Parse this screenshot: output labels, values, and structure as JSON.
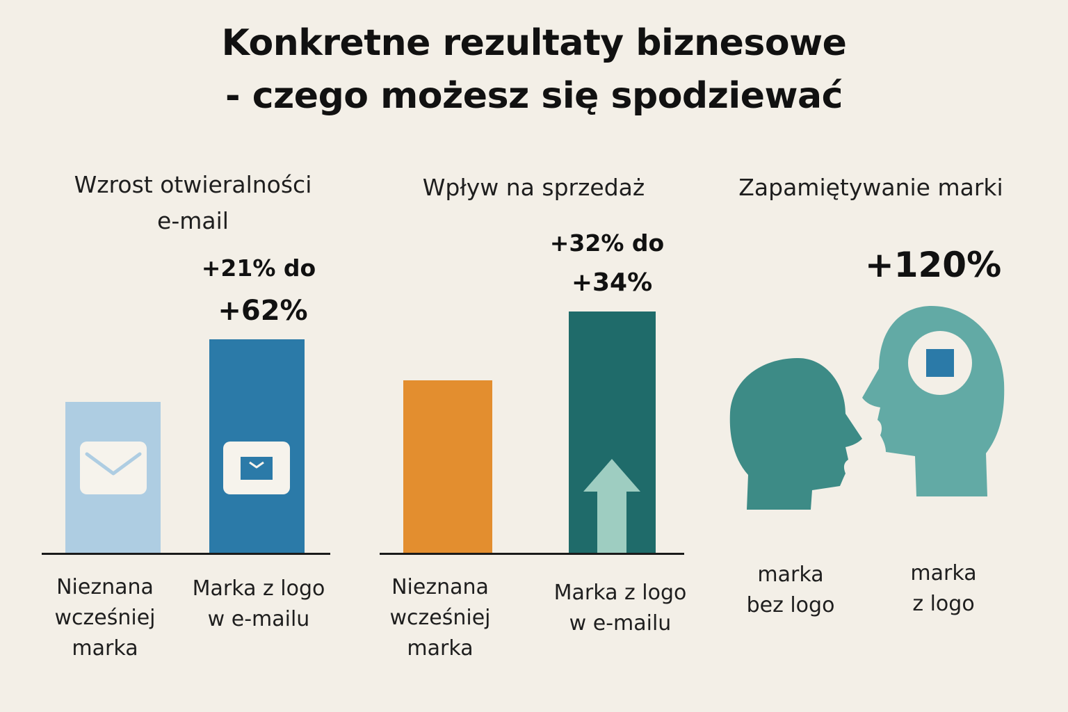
{
  "title": {
    "line1": "Konkretne rezultaty biznesowe",
    "line2": "- czego możesz się spodziewać"
  },
  "colors": {
    "background": "#f3efe7",
    "light_blue": "#aecde2",
    "blue": "#2b7aa8",
    "orange": "#e38e2f",
    "dark_teal": "#1f6b6a",
    "arrow_teal": "#9ecdc1",
    "head_dark": "#3d8b86",
    "head_light": "#62aaa5",
    "logo_square": "#2b7aa8"
  },
  "panels": [
    {
      "heading_line1": "Wzrost otwieralności",
      "heading_line2": "e-mail",
      "value_line1": "+21% do",
      "value_line2": "+62%",
      "items": [
        {
          "caption_lines": [
            "Nieznana",
            "wcześniej",
            "marka"
          ],
          "icon": "envelope-icon"
        },
        {
          "caption_lines": [
            "Marka z logo",
            "w e-mailu"
          ],
          "icon": "branded-envelope-icon"
        }
      ]
    },
    {
      "heading_line1": "Wpływ na sprzedaż",
      "value_line1": "+32% do",
      "value_line2": "+34%",
      "items": [
        {
          "caption_lines": [
            "Nieznana",
            "wcześniej",
            "marka"
          ]
        },
        {
          "caption_lines": [
            "Marka z logo",
            "w e-mailu"
          ],
          "icon": "up-arrow-icon"
        }
      ]
    },
    {
      "heading_line1": "Zapamiętywanie marki",
      "value_line1": "+120%",
      "items": [
        {
          "caption_lines": [
            "marka",
            "bez logo"
          ],
          "icon": "head-profile-icon"
        },
        {
          "caption_lines": [
            "marka",
            "z logo"
          ],
          "icon": "head-with-logo-icon"
        }
      ]
    }
  ]
}
